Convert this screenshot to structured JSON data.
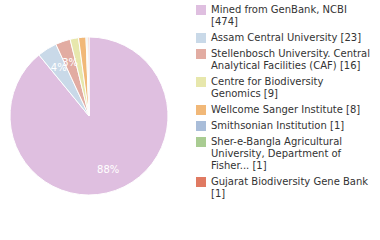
{
  "chart_data": {
    "type": "pie",
    "categories": [
      "Mined from GenBank, NCBI [474]",
      "Assam Central University [23]",
      "Stellenbosch University. Central Analytical Facilities (CAF) [16]",
      "Centre for Biodiversity Genomics [9]",
      "Wellcome Sanger Institute [8]",
      "Smithsonian Institution [1]",
      "Sher-e-Bangla Agricultural University, Department of Fisher... [1]",
      "Gujarat Biodiversity Gene Bank [1]"
    ],
    "values": [
      88,
      4,
      3,
      1.7,
      1.5,
      0.2,
      0.2,
      0.2
    ],
    "value_labels": [
      "88%",
      "4%",
      "3%",
      null,
      null,
      null,
      null,
      null
    ],
    "colors": [
      "#dfbfe0",
      "#c9d9e8",
      "#e2aca2",
      "#e7e7ac",
      "#f1b878",
      "#a9bdd9",
      "#a9cc92",
      "#e07a62"
    ],
    "data_labels": true
  }
}
